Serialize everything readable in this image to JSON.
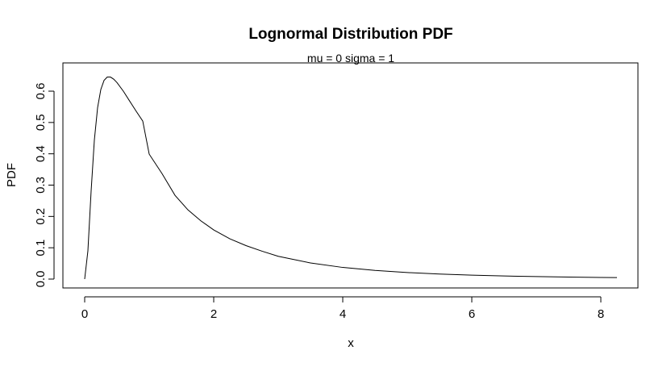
{
  "chart_data": {
    "type": "line",
    "title": "Lognormal Distribution PDF",
    "subtitle": "mu = 0  sigma = 1",
    "xlabel": "x",
    "ylabel": "PDF",
    "xlim": [
      0,
      8.25
    ],
    "ylim": [
      0,
      0.657
    ],
    "grid": false,
    "legend": "none",
    "line_color": "#000000",
    "x_ticks": [
      0,
      2,
      4,
      6,
      8
    ],
    "x_tick_labels": [
      "0",
      "2",
      "4",
      "6",
      "8"
    ],
    "y_ticks": [
      0.0,
      0.1,
      0.2,
      0.3,
      0.4,
      0.5,
      0.6
    ],
    "y_tick_labels": [
      "0.0",
      "0.1",
      "0.2",
      "0.3",
      "0.4",
      "0.5",
      "0.6"
    ],
    "series": [
      {
        "x": [
          0.0,
          0.05,
          0.1,
          0.15,
          0.2,
          0.25,
          0.3,
          0.35,
          0.4,
          0.45,
          0.5,
          0.6,
          0.7,
          0.8,
          0.9,
          1.0,
          1.2,
          1.4,
          1.6,
          1.8,
          2.0,
          2.25,
          2.5,
          2.75,
          3.0,
          3.5,
          4.0,
          4.5,
          5.0,
          5.5,
          6.0,
          6.5,
          7.0,
          7.5,
          8.0,
          8.25
        ],
        "y": [
          0.0,
          0.0904,
          0.2815,
          0.4437,
          0.5471,
          0.6052,
          0.6343,
          0.6452,
          0.645,
          0.6382,
          0.6276,
          0.5997,
          0.5674,
          0.5353,
          0.5046,
          0.3989,
          0.3364,
          0.2674,
          0.2211,
          0.1861,
          0.1569,
          0.1287,
          0.1069,
          0.089,
          0.0727,
          0.0514,
          0.0372,
          0.0276,
          0.0209,
          0.0161,
          0.0126,
          0.0099,
          0.0079,
          0.0064,
          0.0052,
          0.0047
        ]
      }
    ]
  }
}
